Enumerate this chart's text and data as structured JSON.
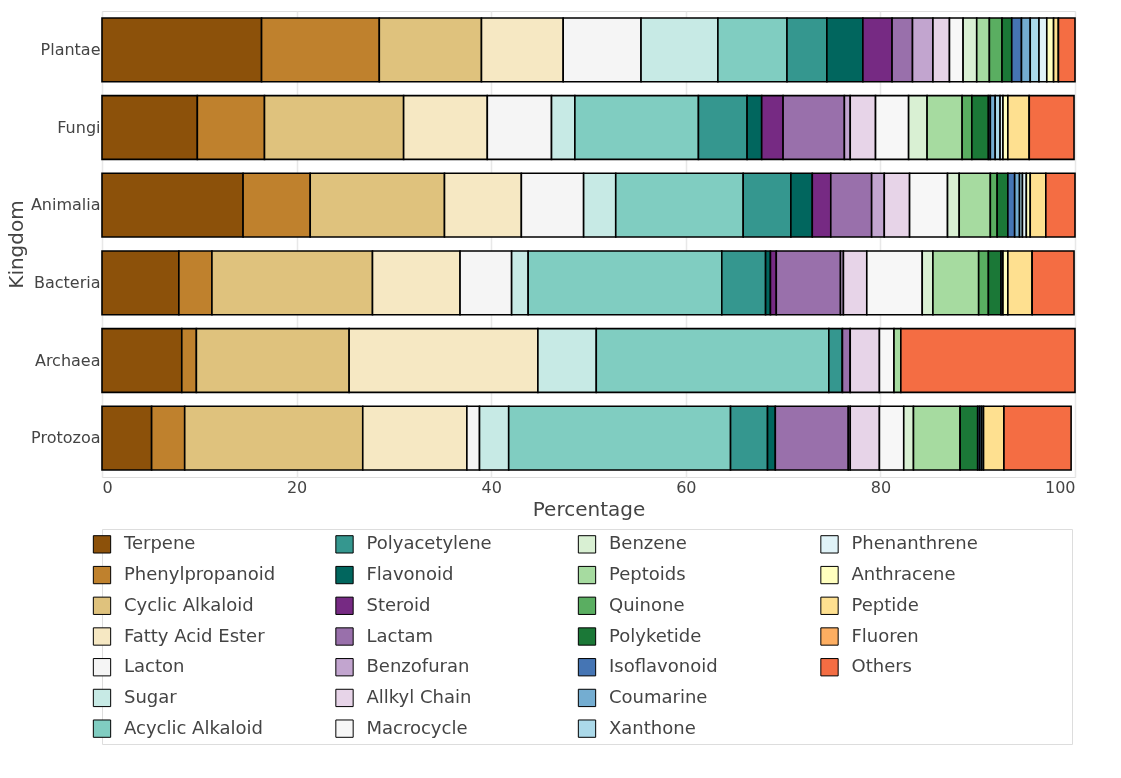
{
  "chart_data": {
    "type": "bar",
    "orientation": "horizontal",
    "stacked": true,
    "xlabel": "Percentage",
    "ylabel": "Kingdom",
    "categories": [
      "Plantae",
      "Fungi",
      "Animalia",
      "Bacteria",
      "Archaea",
      "Protozoa"
    ],
    "xlim": [
      0,
      100
    ],
    "xticks": [
      0,
      20,
      40,
      60,
      80,
      100
    ],
    "grid": "x",
    "legend": "bottom",
    "series": [
      {
        "name": "Terpene",
        "color": "#8c510a",
        "values": [
          16.4,
          9.8,
          14.5,
          7.9,
          8.2,
          5.1
        ]
      },
      {
        "name": "Phenylpropanoid",
        "color": "#bf812d",
        "values": [
          12.1,
          6.9,
          6.9,
          3.4,
          1.5,
          3.4
        ]
      },
      {
        "name": "Cyclic Alkaloid",
        "color": "#dfc27d",
        "values": [
          10.5,
          14.3,
          13.8,
          16.5,
          15.7,
          18.3
        ]
      },
      {
        "name": "Fatty Acid Ester",
        "color": "#f6e8c3",
        "values": [
          8.4,
          8.6,
          7.9,
          9.0,
          19.4,
          10.7
        ]
      },
      {
        "name": "Lacton",
        "color": "#f5f5f5",
        "values": [
          8.0,
          6.6,
          6.4,
          5.3,
          0,
          1.3
        ]
      },
      {
        "name": "Sugar",
        "color": "#c7eae5",
        "values": [
          7.9,
          2.4,
          3.3,
          1.7,
          6.0,
          3.0
        ]
      },
      {
        "name": "Acyclic Alkaloid",
        "color": "#80cdc1",
        "values": [
          7.1,
          12.7,
          13.1,
          19.9,
          23.9,
          22.8
        ]
      },
      {
        "name": "Polyacetylene",
        "color": "#35978f",
        "values": [
          4.1,
          5.0,
          4.9,
          4.5,
          1.4,
          3.8
        ]
      },
      {
        "name": "Flavonoid",
        "color": "#01665e",
        "values": [
          3.7,
          1.5,
          2.2,
          0.5,
          0,
          0.8
        ]
      },
      {
        "name": "Steroid",
        "color": "#762a83",
        "values": [
          3.0,
          2.2,
          1.9,
          0.6,
          0,
          null
        ]
      },
      {
        "name": "Lactam",
        "color": "#9970ab",
        "values": [
          2.1,
          6.3,
          4.2,
          6.6,
          0.8,
          7.5
        ]
      },
      {
        "name": "Benzofuran",
        "color": "#c2a5cf",
        "values": [
          2.1,
          0.6,
          1.3,
          0.3,
          0,
          0.2
        ]
      },
      {
        "name": "Allkyl Chain",
        "color": "#e7d4e8",
        "values": [
          1.7,
          2.6,
          2.6,
          2.4,
          3.0,
          3.0
        ]
      },
      {
        "name": "Macrocycle",
        "color": "#f7f7f7",
        "values": [
          1.4,
          3.4,
          3.9,
          5.7,
          1.5,
          2.5
        ]
      },
      {
        "name": "Benzene",
        "color": "#d9f0d3",
        "values": [
          1.4,
          1.9,
          1.2,
          1.1,
          0,
          1.0
        ]
      },
      {
        "name": "Peptoids",
        "color": "#a6dba0",
        "values": [
          1.3,
          3.6,
          3.2,
          4.7,
          0.7,
          4.8
        ]
      },
      {
        "name": "Quinone",
        "color": "#5aae61",
        "values": [
          1.3,
          1.0,
          0.7,
          1.0,
          0,
          0
        ]
      },
      {
        "name": "Polyketide",
        "color": "#1b7837",
        "values": [
          1.0,
          1.7,
          1.1,
          1.3,
          0,
          1.8
        ]
      },
      {
        "name": "Isoflavonoid",
        "color": "#4575b4",
        "values": [
          1.0,
          0.2,
          0.7,
          0.2,
          0,
          0.2
        ]
      },
      {
        "name": "Coumarine",
        "color": "#74add1",
        "values": [
          0.9,
          0.5,
          0.5,
          null,
          0,
          0.2
        ]
      },
      {
        "name": "Xanthone",
        "color": "#abd9e9",
        "values": [
          0.9,
          0.5,
          0.3,
          0,
          0,
          0.2
        ]
      },
      {
        "name": "Phenanthrene",
        "color": "#e0f3f8",
        "values": [
          0.8,
          0.3,
          0.4,
          0,
          0,
          null
        ]
      },
      {
        "name": "Anthracene",
        "color": "#ffffbf",
        "values": [
          0.7,
          0.5,
          0.4,
          0.5,
          0,
          0
        ]
      },
      {
        "name": "Peptide",
        "color": "#fee090",
        "values": [
          0.5,
          2.2,
          1.6,
          2.5,
          0,
          2.1
        ]
      },
      {
        "name": "Fluoren",
        "color": "#fdae61",
        "values": [
          0,
          0,
          0,
          0,
          0,
          0
        ]
      },
      {
        "name": "Others",
        "color": "#f46d43",
        "values": [
          1.7,
          4.6,
          3.0,
          4.3,
          17.9,
          6.9
        ]
      }
    ]
  }
}
